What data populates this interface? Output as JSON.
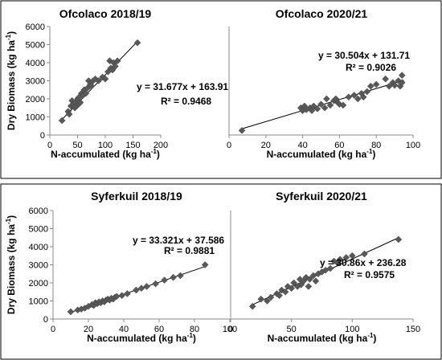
{
  "chart_data": [
    {
      "type": "scatter",
      "title": "Ofcolaco 2018/19",
      "xlabel": "N-accumulated (kg ha",
      "xlabel_sup": "-1",
      "xlabel_end": ")",
      "ylabel": "Dry Biomass (kg ha",
      "ylabel_sup": "-1",
      "ylabel_end": ")",
      "xlim": [
        0,
        200
      ],
      "ylim": [
        0,
        6000
      ],
      "xticks": [
        "0",
        "50",
        "100",
        "150",
        "200"
      ],
      "yticks": [
        "0",
        "1000",
        "2000",
        "3000",
        "4000",
        "5000",
        "6000"
      ],
      "equation": "y = 31.677x + 163.91",
      "r2": "R² = 0.9468",
      "trend": {
        "slope": 31.677,
        "intercept": 163.91,
        "x_range": [
          22,
          160
        ]
      },
      "points": [
        [
          22,
          800
        ],
        [
          33,
          1300
        ],
        [
          35,
          1150
        ],
        [
          38,
          1600
        ],
        [
          40,
          1900
        ],
        [
          42,
          1700
        ],
        [
          45,
          1500
        ],
        [
          46,
          1800
        ],
        [
          48,
          1600
        ],
        [
          50,
          2000
        ],
        [
          52,
          1700
        ],
        [
          53,
          2100
        ],
        [
          55,
          1800
        ],
        [
          57,
          2300
        ],
        [
          60,
          2200
        ],
        [
          62,
          2500
        ],
        [
          65,
          2300
        ],
        [
          68,
          2600
        ],
        [
          70,
          3000
        ],
        [
          73,
          2800
        ],
        [
          75,
          2700
        ],
        [
          78,
          3000
        ],
        [
          82,
          3100
        ],
        [
          88,
          3000
        ],
        [
          95,
          3200
        ],
        [
          100,
          3100
        ],
        [
          105,
          3500
        ],
        [
          108,
          4100
        ],
        [
          110,
          3700
        ],
        [
          113,
          3600
        ],
        [
          115,
          4000
        ],
        [
          118,
          3800
        ],
        [
          122,
          4100
        ],
        [
          158,
          5100
        ]
      ]
    },
    {
      "type": "scatter",
      "title": "Ofcolaco 2020/21",
      "xlabel": "N-accumulated (kg ha",
      "xlabel_sup": "-1",
      "xlabel_end": ")",
      "ylabel": "",
      "xlim": [
        0,
        100
      ],
      "ylim": [
        0,
        6000
      ],
      "xticks": [
        "0",
        "20",
        "40",
        "60",
        "80",
        "100"
      ],
      "yticks": [],
      "equation": "y = 30.504x + 131.71",
      "r2": "R² = 0.9026",
      "trend": {
        "slope": 30.504,
        "intercept": 131.71,
        "x_range": [
          7,
          95
        ]
      },
      "points": [
        [
          7,
          250
        ],
        [
          39,
          1500
        ],
        [
          40,
          1350
        ],
        [
          41,
          1600
        ],
        [
          42,
          1400
        ],
        [
          44,
          1500
        ],
        [
          45,
          1350
        ],
        [
          46,
          1600
        ],
        [
          48,
          1450
        ],
        [
          50,
          1700
        ],
        [
          52,
          1500
        ],
        [
          53,
          2000
        ],
        [
          55,
          1650
        ],
        [
          57,
          1900
        ],
        [
          58,
          2000
        ],
        [
          59,
          1800
        ],
        [
          60,
          1700
        ],
        [
          62,
          1650
        ],
        [
          65,
          2100
        ],
        [
          68,
          2200
        ],
        [
          70,
          2000
        ],
        [
          72,
          2300
        ],
        [
          73,
          2100
        ],
        [
          75,
          2400
        ],
        [
          77,
          2700
        ],
        [
          80,
          2800
        ],
        [
          85,
          3100
        ],
        [
          87,
          2700
        ],
        [
          89,
          2900
        ],
        [
          90,
          2750
        ],
        [
          92,
          3000
        ],
        [
          93,
          2700
        ],
        [
          94,
          3300
        ],
        [
          94,
          2900
        ]
      ]
    },
    {
      "type": "scatter",
      "title": "Syferkuil 2018/19",
      "xlabel": "N-accumulated (kg ha",
      "xlabel_sup": "-1",
      "xlabel_end": ")",
      "ylabel": "Dry Biomass (kg ha",
      "ylabel_sup": "-1",
      "ylabel_end": ")",
      "xlim": [
        0,
        100
      ],
      "ylim": [
        0,
        6000
      ],
      "xticks": [
        "0",
        "20",
        "40",
        "60",
        "80",
        "100"
      ],
      "yticks": [
        "0",
        "1000",
        "2000",
        "3000",
        "4000",
        "5000",
        "6000"
      ],
      "equation": "y = 33.321x + 37.586",
      "r2": "R² = 0.9881",
      "trend": {
        "slope": 33.321,
        "intercept": 37.586,
        "x_range": [
          10,
          87
        ]
      },
      "points": [
        [
          10,
          400
        ],
        [
          14,
          500
        ],
        [
          16,
          550
        ],
        [
          18,
          600
        ],
        [
          20,
          700
        ],
        [
          22,
          800
        ],
        [
          23,
          750
        ],
        [
          24,
          900
        ],
        [
          25,
          850
        ],
        [
          26,
          950
        ],
        [
          27,
          900
        ],
        [
          28,
          1000
        ],
        [
          29,
          950
        ],
        [
          30,
          1050
        ],
        [
          31,
          1100
        ],
        [
          32,
          1050
        ],
        [
          33,
          1150
        ],
        [
          34,
          1100
        ],
        [
          35,
          1200
        ],
        [
          36,
          1250
        ],
        [
          39,
          1300
        ],
        [
          42,
          1400
        ],
        [
          47,
          1600
        ],
        [
          50,
          1700
        ],
        [
          53,
          1800
        ],
        [
          58,
          1950
        ],
        [
          63,
          2150
        ],
        [
          68,
          2300
        ],
        [
          72,
          2400
        ],
        [
          86,
          3000
        ]
      ]
    },
    {
      "type": "scatter",
      "title": "Syferkuil 2020/21",
      "xlabel": "N-accumulated (kg ha",
      "xlabel_sup": "-1",
      "xlabel_end": ")",
      "ylabel": "",
      "xlim": [
        0,
        150
      ],
      "ylim": [
        0,
        6000
      ],
      "xticks": [
        "0",
        "50",
        "100",
        "150"
      ],
      "yticks": [],
      "equation": "y = 30.86x + 236.28",
      "r2": "R² = 0.9575",
      "trend": {
        "slope": 30.86,
        "intercept": 236.28,
        "x_range": [
          18,
          138
        ]
      },
      "points": [
        [
          18,
          700
        ],
        [
          25,
          1100
        ],
        [
          30,
          1000
        ],
        [
          33,
          1200
        ],
        [
          38,
          1400
        ],
        [
          40,
          1300
        ],
        [
          42,
          1600
        ],
        [
          45,
          1500
        ],
        [
          47,
          1800
        ],
        [
          50,
          1700
        ],
        [
          52,
          2000
        ],
        [
          55,
          1800
        ],
        [
          57,
          2200
        ],
        [
          58,
          1900
        ],
        [
          60,
          2100
        ],
        [
          62,
          2300
        ],
        [
          64,
          1800
        ],
        [
          65,
          2200
        ],
        [
          68,
          2400
        ],
        [
          70,
          2100
        ],
        [
          72,
          2500
        ],
        [
          75,
          2600
        ],
        [
          78,
          2700
        ],
        [
          82,
          2800
        ],
        [
          85,
          3200
        ],
        [
          88,
          3100
        ],
        [
          90,
          3300
        ],
        [
          95,
          3400
        ],
        [
          100,
          3500
        ],
        [
          110,
          3600
        ],
        [
          138,
          4400
        ]
      ]
    }
  ]
}
